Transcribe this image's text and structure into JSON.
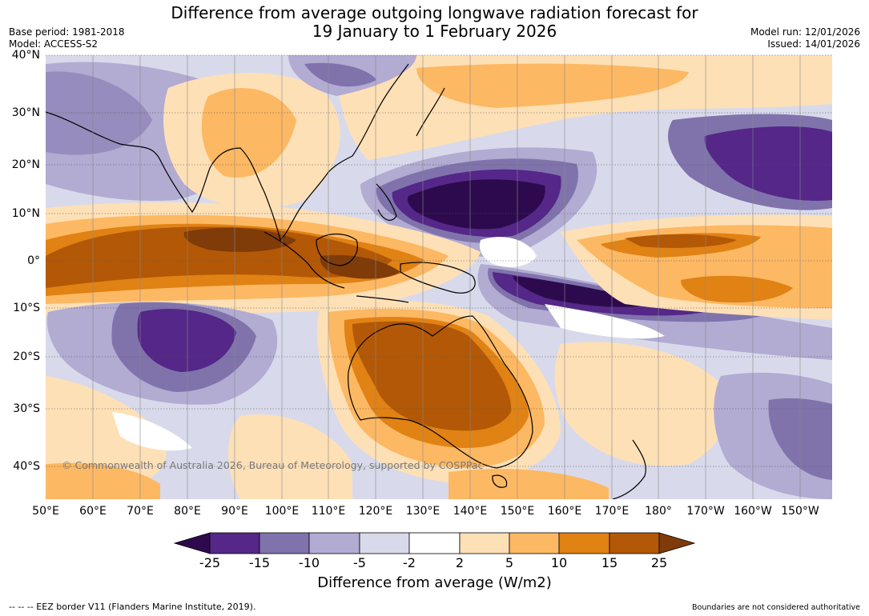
{
  "title": {
    "line1": "Difference from average outgoing longwave radiation forecast for",
    "line2": "19 January to 1 February 2026"
  },
  "meta": {
    "base_period": "Base period: 1981-2018",
    "model": "Model: ACCESS-S2",
    "model_run": "Model run: 12/01/2026",
    "issued": "Issued: 14/01/2026"
  },
  "axes": {
    "lat_labels": [
      "40°N",
      "30°N",
      "20°N",
      "10°N",
      "0°",
      "10°S",
      "20°S",
      "30°S",
      "40°S"
    ],
    "lon_labels": [
      "50°E",
      "60°E",
      "70°E",
      "80°E",
      "90°E",
      "100°E",
      "110°E",
      "120°E",
      "130°E",
      "140°E",
      "150°E",
      "160°E",
      "170°E",
      "180°",
      "170°W",
      "160°W",
      "150°W"
    ]
  },
  "copyright": "© Commonwealth of Australia 2026, Bureau of Meteorology, supported by COSPPac",
  "colorbar": {
    "ticks": [
      "-25",
      "-15",
      "-10",
      "-5",
      "-2",
      "2",
      "5",
      "10",
      "15",
      "25"
    ],
    "colors": {
      "lt25": "#2d0a4e",
      "m25_m15": "#542788",
      "m15_m10": "#8073ac",
      "m10_m5": "#b2abd2",
      "m5_m2": "#d8daeb",
      "m2_2": "#ffffff",
      "p2_p5": "#fee0b6",
      "p5_p10": "#fdb863",
      "p10_p15": "#e08214",
      "p15_p25": "#b35806",
      "gt25": "#7f3b08"
    },
    "title": "Difference from average (W/m2)"
  },
  "footer": {
    "eez": "--  --  -- EEZ border V11 (Flanders Marine Institute, 2019).",
    "boundaries": "Boundaries are not considered authoritative"
  }
}
